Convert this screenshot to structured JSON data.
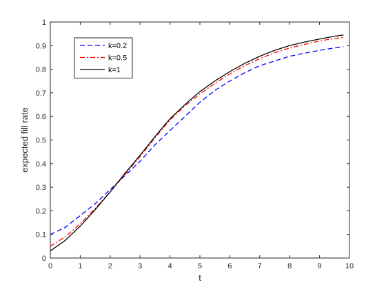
{
  "chart_data": {
    "type": "line",
    "title": "",
    "xlabel": "t",
    "ylabel": "expected fill rate",
    "xlim": [
      0,
      10
    ],
    "ylim": [
      0,
      1
    ],
    "xticks": [
      0,
      1,
      2,
      3,
      4,
      5,
      6,
      7,
      8,
      9,
      10
    ],
    "yticks": [
      0,
      0.1,
      0.2,
      0.3,
      0.4,
      0.5,
      0.6,
      0.7,
      0.8,
      0.9,
      1
    ],
    "xtick_labels": [
      "0",
      "1",
      "2",
      "3",
      "4",
      "5",
      "6",
      "7",
      "8",
      "9",
      "10"
    ],
    "ytick_labels": [
      "0",
      "0.1",
      "0.2",
      "0.3",
      "0.4",
      "0.5",
      "0.6",
      "0.7",
      "0.8",
      "0.9",
      "1"
    ],
    "grid": false,
    "legend_position": "top-left",
    "x": [
      0,
      0.5,
      1,
      1.5,
      2,
      2.5,
      3,
      3.5,
      4,
      4.5,
      5,
      5.5,
      6,
      6.5,
      7,
      7.5,
      8,
      8.5,
      9,
      9.5,
      9.8
    ],
    "series": [
      {
        "name": "k=0.2",
        "color": "#0000ff",
        "style": "dashed",
        "values": [
          0.1,
          0.13,
          0.18,
          0.23,
          0.29,
          0.35,
          0.41,
          0.48,
          0.54,
          0.6,
          0.66,
          0.71,
          0.75,
          0.785,
          0.815,
          0.835,
          0.855,
          0.868,
          0.88,
          0.89,
          0.895
        ]
      },
      {
        "name": "k=0.5",
        "color": "#ff0000",
        "style": "dash-dot",
        "values": [
          0.05,
          0.09,
          0.145,
          0.21,
          0.28,
          0.355,
          0.43,
          0.51,
          0.585,
          0.645,
          0.695,
          0.74,
          0.78,
          0.815,
          0.845,
          0.87,
          0.89,
          0.905,
          0.92,
          0.93,
          0.935
        ]
      },
      {
        "name": "k=1",
        "color": "#000000",
        "style": "solid",
        "values": [
          0.03,
          0.075,
          0.135,
          0.205,
          0.28,
          0.36,
          0.435,
          0.515,
          0.59,
          0.65,
          0.705,
          0.75,
          0.79,
          0.825,
          0.855,
          0.88,
          0.9,
          0.915,
          0.928,
          0.94,
          0.945
        ]
      }
    ]
  }
}
